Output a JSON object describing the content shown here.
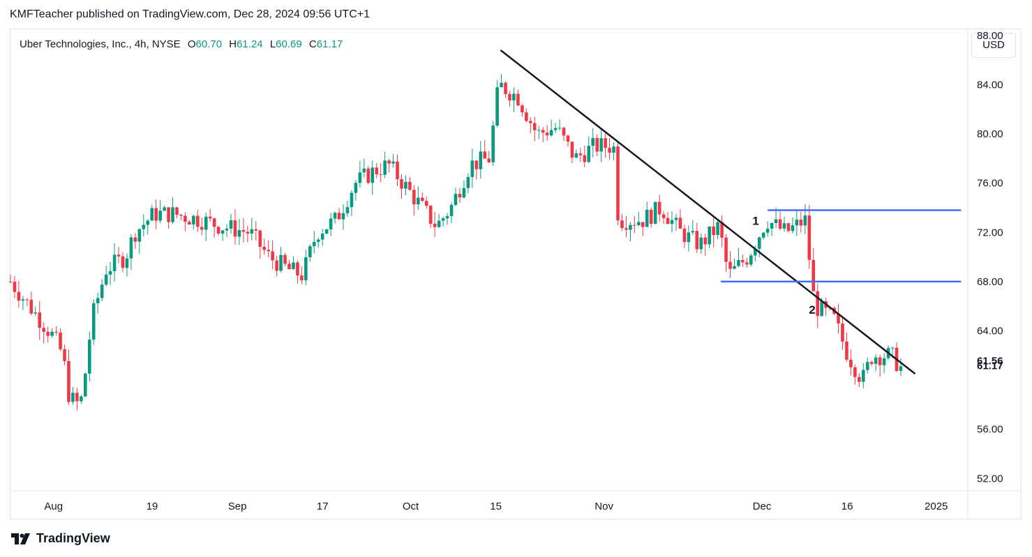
{
  "header": {
    "published": "KMFTeacher published on TradingView.com, Dec 28, 2024 09:56 UTC+1"
  },
  "symbol": {
    "name": "Uber Technologies, Inc., 4h, NYSE",
    "o_label": "O",
    "o_value": "60.70",
    "h_label": "H",
    "h_value": "61.24",
    "l_label": "L",
    "l_value": "60.69",
    "c_label": "C",
    "c_value": "61.17"
  },
  "currency_button": "USD",
  "footer": {
    "brand": "TradingView"
  },
  "colors": {
    "up": "#089981",
    "down": "#f23645",
    "trendline": "#131722",
    "level": "#3d6ef5"
  },
  "chart_data": {
    "type": "candlestick",
    "title": "Uber Technologies, Inc., 4h, NYSE",
    "ylim": [
      51,
      88.5
    ],
    "y_ticks": [
      "88.00",
      "84.00",
      "80.00",
      "76.00",
      "72.00",
      "68.00",
      "64.00",
      "56.00",
      "52.00"
    ],
    "price_labels": [
      "61.56",
      "61.17"
    ],
    "x_ticks": [
      {
        "label": "Aug",
        "t": 0.045
      },
      {
        "label": "19",
        "t": 0.148
      },
      {
        "label": "Sep",
        "t": 0.237
      },
      {
        "label": "17",
        "t": 0.326
      },
      {
        "label": "Oct",
        "t": 0.418
      },
      {
        "label": "15",
        "t": 0.507
      },
      {
        "label": "Nov",
        "t": 0.62
      },
      {
        "label": "Dec",
        "t": 0.785
      },
      {
        "label": "16",
        "t": 0.874
      },
      {
        "label": "2025",
        "t": 0.967
      }
    ],
    "path_points": [
      [
        0,
        68
      ],
      [
        0.02,
        66
      ],
      [
        0.035,
        64.5
      ],
      [
        0.045,
        63.5
      ],
      [
        0.055,
        62
      ],
      [
        0.06,
        59
      ],
      [
        0.068,
        58
      ],
      [
        0.075,
        58.5
      ],
      [
        0.085,
        65
      ],
      [
        0.1,
        69
      ],
      [
        0.12,
        70
      ],
      [
        0.13,
        72
      ],
      [
        0.15,
        73.5
      ],
      [
        0.17,
        73.5
      ],
      [
        0.2,
        73
      ],
      [
        0.22,
        72.5
      ],
      [
        0.25,
        72
      ],
      [
        0.27,
        70
      ],
      [
        0.29,
        69
      ],
      [
        0.305,
        68.5
      ],
      [
        0.32,
        72
      ],
      [
        0.34,
        73
      ],
      [
        0.36,
        76
      ],
      [
        0.38,
        77
      ],
      [
        0.395,
        77.5
      ],
      [
        0.41,
        76
      ],
      [
        0.43,
        74
      ],
      [
        0.445,
        72.5
      ],
      [
        0.46,
        74
      ],
      [
        0.48,
        77.5
      ],
      [
        0.5,
        78
      ],
      [
        0.51,
        84
      ],
      [
        0.53,
        83
      ],
      [
        0.55,
        80
      ],
      [
        0.57,
        80.5
      ],
      [
        0.59,
        78
      ],
      [
        0.61,
        79
      ],
      [
        0.63,
        79
      ],
      [
        0.635,
        73
      ],
      [
        0.66,
        73
      ],
      [
        0.68,
        74
      ],
      [
        0.7,
        72
      ],
      [
        0.72,
        71
      ],
      [
        0.74,
        72.5
      ],
      [
        0.75,
        68.5
      ],
      [
        0.77,
        70
      ],
      [
        0.79,
        73
      ],
      [
        0.81,
        72
      ],
      [
        0.83,
        73
      ],
      [
        0.84,
        66
      ],
      [
        0.86,
        65
      ],
      [
        0.875,
        62
      ],
      [
        0.89,
        60
      ],
      [
        0.9,
        62
      ],
      [
        0.92,
        62
      ],
      [
        0.93,
        61
      ]
    ],
    "trendline": {
      "start": {
        "t": 0.512,
        "price": 86.8
      },
      "end": {
        "t": 0.945,
        "price": 60.5
      }
    },
    "levels": [
      {
        "price": 73.8,
        "t_start": 0.791,
        "t_end": 0.993
      },
      {
        "price": 68.0,
        "t_start": 0.742,
        "t_end": 0.993
      }
    ],
    "annotations": [
      {
        "text": "1",
        "t": 0.775,
        "price": 72.6
      },
      {
        "text": "2",
        "t": 0.834,
        "price": 65.4
      }
    ]
  }
}
